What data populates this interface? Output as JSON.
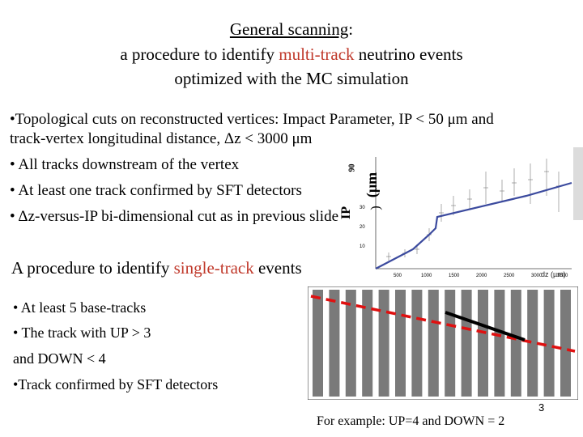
{
  "title": {
    "line1_underlined": "General scanning",
    "line1_rest": ":",
    "line2_a": "a procedure to identify ",
    "line2_red": "multi-track",
    "line2_b": " neutrino events",
    "line3": "optimized with the MC simulation"
  },
  "multi": {
    "bullet1a": "•Topological cuts on reconstructed vertices: Impact Parameter, IP < 50 μm and",
    "bullet1b": "track-vertex longitudinal distance, Δz < 3000 μm",
    "bullet2": "• All tracks downstream of the vertex",
    "bullet3": "• At least one track confirmed by SFT detectors",
    "bullet4": "• Δz-versus-IP bi-dimensional cut as in previous slide"
  },
  "plot": {
    "ylabel_ip": "IP",
    "ylabel_90": "90",
    "ylabel_garble": "(µm",
    "ylabel_paren": ")",
    "xlabel": "dz (µm)",
    "yticks": [
      "30",
      "20",
      "10"
    ],
    "xticks": [
      "500",
      "1000",
      "1500",
      "2000",
      "2500",
      "3000",
      "3500"
    ]
  },
  "single": {
    "heading_a": "A procedure to identify ",
    "heading_red": "single-track",
    "heading_b": " events",
    "bullet1": "• At least 5 base-tracks",
    "bullet2": "• The track with UP > 3",
    "bullet3": " and  DOWN  < 4",
    "bullet4": "•Track confirmed by SFT detectors"
  },
  "diagram": {
    "plates_up": 4,
    "plates_down": 2
  },
  "footer": {
    "page": "3",
    "caption": "For example: UP=4 and DOWN = 2"
  },
  "colors": {
    "accent_red": "#c0392b",
    "plate": "#7a7a7a",
    "fit_line": "#3b4a9e",
    "dash_red": "#e01010"
  }
}
